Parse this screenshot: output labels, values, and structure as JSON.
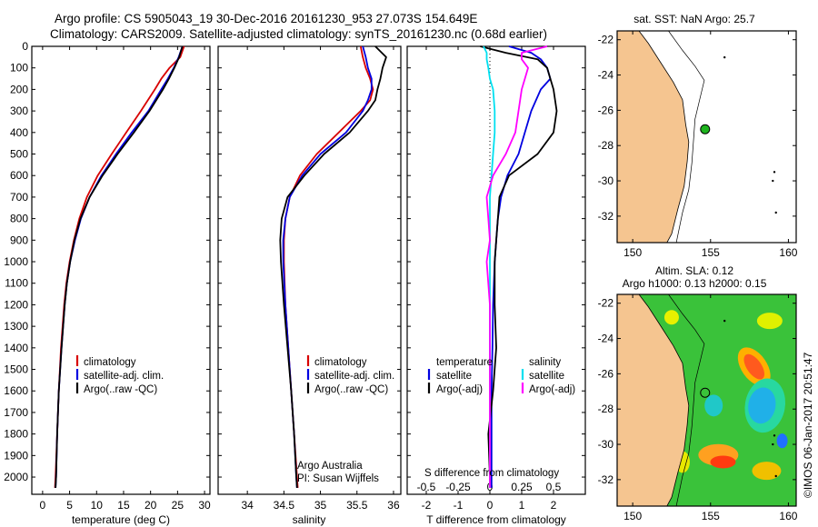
{
  "title_line1": "Argo profile: CS 5905043_19 30-Dec-2016 20161230_953 27.073S 154.649E",
  "title_line2": "Climatology: CARS2009. Satellite-adjusted climatology: synTS_20161230.nc (0.68d earlier)",
  "chart_data": [
    {
      "type": "line",
      "id": "temperature",
      "xlabel": "temperature (deg C)",
      "xlim": [
        -2,
        31
      ],
      "xticks": [
        0,
        5,
        10,
        15,
        20,
        25,
        30
      ],
      "ylim": [
        0,
        2080
      ],
      "yticks": [
        0,
        100,
        200,
        300,
        400,
        500,
        600,
        700,
        800,
        900,
        1000,
        1100,
        1200,
        1300,
        1400,
        1500,
        1600,
        1700,
        1800,
        1900,
        2000
      ],
      "legend": [
        "climatology",
        "satellite-adj. clim.",
        "Argo(..raw -QC)"
      ],
      "colors": [
        "#d80000",
        "#0000e0",
        "#000000"
      ],
      "depth": [
        0,
        50,
        100,
        150,
        200,
        300,
        400,
        500,
        600,
        700,
        800,
        900,
        1000,
        1100,
        1200,
        1400,
        1600,
        1800,
        2000,
        2050
      ],
      "series": [
        {
          "name": "climatology",
          "values": [
            26.2,
            25.5,
            23.5,
            22.0,
            20.8,
            18.2,
            15.5,
            12.8,
            10.2,
            8.2,
            6.8,
            5.8,
            5.0,
            4.4,
            4.0,
            3.4,
            3.0,
            2.7,
            2.4,
            2.3
          ]
        },
        {
          "name": "satellite-adj. clim.",
          "values": [
            25.9,
            25.2,
            24.3,
            23.2,
            22.0,
            19.6,
            16.5,
            13.6,
            10.9,
            8.7,
            7.1,
            6.0,
            5.1,
            4.5,
            4.1,
            3.5,
            3.0,
            2.7,
            2.5,
            2.4
          ]
        },
        {
          "name": "Argo(..raw -QC)",
          "values": [
            25.9,
            25.3,
            24.4,
            23.4,
            22.3,
            19.8,
            16.9,
            13.9,
            11.1,
            8.7,
            7.0,
            5.9,
            5.1,
            4.5,
            4.1,
            3.5,
            3.0,
            2.7,
            2.5,
            2.4
          ]
        }
      ]
    },
    {
      "type": "line",
      "id": "salinity",
      "xlabel": "salinity",
      "xlim": [
        33.6,
        36.1
      ],
      "xticks": [
        34,
        34.5,
        35,
        35.5,
        36
      ],
      "legend": [
        "climatology",
        "satellite-adj. clim.",
        "Argo(..raw -QC)"
      ],
      "note1": "Argo Australia",
      "note2": "PI: Susan Wijffels",
      "depth": [
        0,
        50,
        100,
        150,
        200,
        250,
        300,
        400,
        500,
        600,
        700,
        800,
        900,
        1000,
        1200,
        1400,
        1600,
        1800,
        2000,
        2050
      ],
      "series": [
        {
          "name": "climatology",
          "values": [
            35.55,
            35.58,
            35.62,
            35.68,
            35.72,
            35.68,
            35.55,
            35.25,
            34.95,
            34.72,
            34.58,
            34.52,
            34.5,
            34.5,
            34.52,
            34.56,
            34.6,
            34.64,
            34.68,
            34.69
          ]
        },
        {
          "name": "satellite-adj. clim.",
          "values": [
            35.58,
            35.62,
            35.65,
            35.7,
            35.7,
            35.65,
            35.58,
            35.35,
            35.0,
            34.75,
            34.58,
            34.52,
            34.49,
            34.49,
            34.52,
            34.56,
            34.6,
            34.64,
            34.67,
            34.68
          ]
        },
        {
          "name": "Argo(..raw -QC)",
          "values": [
            35.75,
            35.9,
            35.85,
            35.82,
            35.78,
            35.75,
            35.65,
            35.4,
            35.05,
            34.78,
            34.55,
            34.47,
            34.45,
            34.46,
            34.5,
            34.55,
            34.6,
            34.64,
            34.67,
            34.68
          ]
        }
      ]
    },
    {
      "type": "line",
      "id": "difference",
      "xlabel": "T difference from climatology",
      "xlabel_top": "S difference from climatology",
      "xlim": [
        -2.6,
        3.0
      ],
      "xticks": [
        -2,
        -1,
        0,
        1,
        2
      ],
      "xticks_top_labels": [
        "-0.5",
        "-0.25",
        "0",
        "0.25",
        "0.5"
      ],
      "xticks_top_positions": [
        -2,
        -1,
        0,
        1,
        2
      ],
      "legend_temp_title": "temperature",
      "legend_sal_title": "salinity",
      "legend_temp": [
        "satellite",
        "Argo(-adj)"
      ],
      "legend_sal": [
        "satellite",
        "Argo(-adj)"
      ],
      "colors": [
        "#0000e0",
        "#000000",
        "#00e0f0",
        "#ff00ff"
      ],
      "depth": [
        0,
        30,
        60,
        100,
        150,
        200,
        300,
        400,
        500,
        600,
        700,
        800,
        900,
        1000,
        1200,
        1400,
        1600,
        1800,
        2000,
        2050
      ],
      "series": [
        {
          "name": "T satellite",
          "values": [
            0.6,
            1.3,
            1.6,
            1.8,
            1.9,
            1.6,
            1.3,
            1.1,
            0.9,
            0.55,
            0.35,
            0.25,
            0.2,
            0.15,
            0.1,
            0.08,
            0.05,
            0.05,
            0.05,
            0.05
          ]
        },
        {
          "name": "T Argo(-adj)",
          "values": [
            -0.3,
            0.5,
            1.5,
            1.8,
            1.9,
            2.0,
            2.1,
            2.0,
            1.5,
            0.6,
            0.3,
            0.25,
            0.2,
            0.15,
            0.15,
            0.2,
            0.1,
            -0.05,
            0.0,
            0.0
          ]
        },
        {
          "name": "S satellite",
          "values": [
            -0.2,
            -0.1,
            -0.1,
            -0.05,
            0.0,
            0.1,
            0.15,
            0.15,
            0.1,
            0.05,
            0.0,
            0.0,
            0.0,
            0.0,
            0.0,
            0.0,
            0.0,
            0.0,
            0.0,
            0.0
          ]
        },
        {
          "name": "S Argo(-adj)",
          "values": [
            1.8,
            1.0,
            1.0,
            1.2,
            1.1,
            1.0,
            0.9,
            0.8,
            0.5,
            0.1,
            -0.1,
            -0.05,
            0.0,
            -0.1,
            0.0,
            0.0,
            0.0,
            0.0,
            0.0,
            0.0
          ]
        }
      ]
    }
  ],
  "maps": {
    "sst_title": "sat. SST: NaN Argo: 25.7",
    "sla_title_1": "Altim. SLA: 0.12",
    "sla_title_2": "Argo h1000: 0.13 h2000: 0.15",
    "xticks": [
      "150",
      "155",
      "160"
    ],
    "xtick_values": [
      150,
      155,
      160
    ],
    "yticks": [
      "-22",
      "-24",
      "-26",
      "-28",
      "-30",
      "-32"
    ],
    "ytick_values": [
      -22,
      -24,
      -26,
      -28,
      -30,
      -32
    ],
    "lon_range": [
      149,
      160.5
    ],
    "lat_range": [
      -21.5,
      -33.5
    ],
    "float_lon": 154.649,
    "float_lat": -27.073,
    "land_color": "#f5c590",
    "float_color": "#1eb41e"
  },
  "credit": "©IMOS 06-Jan-2017 20:51:47"
}
